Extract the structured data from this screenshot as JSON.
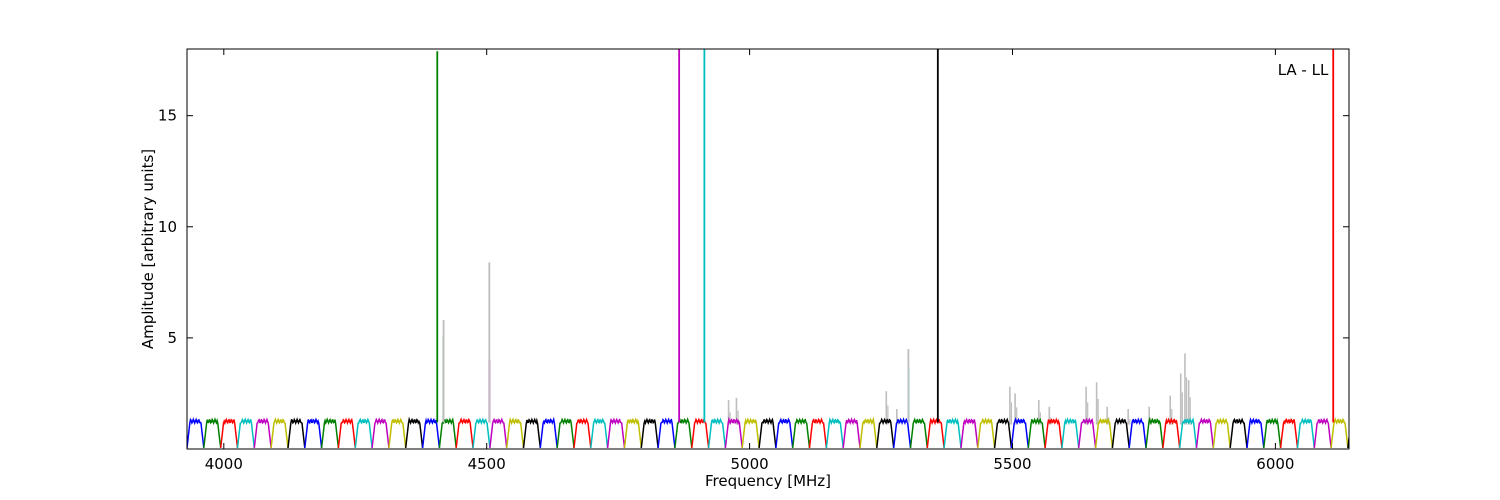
{
  "chart_data": {
    "type": "line",
    "annotation": "LA - LL",
    "xlabel": "Frequency [MHz]",
    "ylabel": "Amplitude [arbitrary units]",
    "xlim": [
      3930,
      6140
    ],
    "ylim": [
      0,
      18
    ],
    "xticks": [
      4000,
      4500,
      5000,
      5500,
      6000
    ],
    "yticks": [
      5,
      10,
      15
    ],
    "grid": false,
    "colors": {
      "cycle": [
        "#0000ff",
        "#008000",
        "#ff0000",
        "#00bfbf",
        "#bf00bf",
        "#bfbf00",
        "#000000"
      ],
      "background_trace": "#bebebe"
    },
    "band": {
      "start": 3930,
      "width": 32,
      "baseline_low": 0.05,
      "baseline_high": 1.25,
      "note": "repeating sub-band ripple pattern, colours cycle through the palette"
    },
    "spikes": [
      {
        "x": 4406,
        "y": 17.9,
        "color": "#008000"
      },
      {
        "x": 4418,
        "y": 5.1,
        "color": "#008000"
      },
      {
        "x": 4418,
        "y": 5.8,
        "color": "#bebebe"
      },
      {
        "x": 4505,
        "y": 4.0,
        "color": "#bf00bf"
      },
      {
        "x": 4505,
        "y": 8.4,
        "color": "#bebebe"
      },
      {
        "x": 4866,
        "y": 18.0,
        "color": "#bf00bf"
      },
      {
        "x": 4914,
        "y": 18.0,
        "color": "#00bfbf"
      },
      {
        "x": 5302,
        "y": 3.7,
        "color": "#00bfbf"
      },
      {
        "x": 5302,
        "y": 4.5,
        "color": "#bebebe"
      },
      {
        "x": 5358,
        "y": 18.0,
        "color": "#000000"
      },
      {
        "x": 6110,
        "y": 18.0,
        "color": "#ff0000"
      }
    ],
    "gray_bursts": [
      {
        "x": 4960,
        "y": 2.2
      },
      {
        "x": 4975,
        "y": 2.3
      },
      {
        "x": 5260,
        "y": 2.6
      },
      {
        "x": 5280,
        "y": 1.8
      },
      {
        "x": 5495,
        "y": 2.8
      },
      {
        "x": 5505,
        "y": 2.5
      },
      {
        "x": 5550,
        "y": 2.2
      },
      {
        "x": 5570,
        "y": 1.9
      },
      {
        "x": 5640,
        "y": 2.8
      },
      {
        "x": 5660,
        "y": 3.0
      },
      {
        "x": 5680,
        "y": 1.9
      },
      {
        "x": 5720,
        "y": 1.8
      },
      {
        "x": 5760,
        "y": 1.9
      },
      {
        "x": 5800,
        "y": 2.4
      },
      {
        "x": 5820,
        "y": 3.4
      },
      {
        "x": 5828,
        "y": 4.3
      },
      {
        "x": 5835,
        "y": 3.1
      }
    ]
  }
}
